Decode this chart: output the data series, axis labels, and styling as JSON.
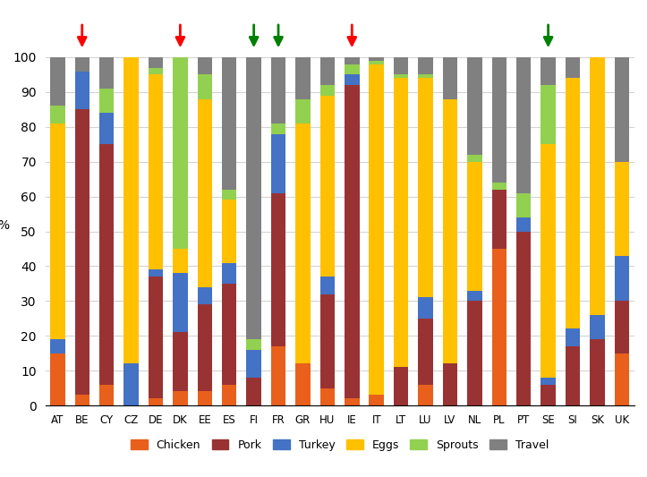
{
  "countries": [
    "AT",
    "BE",
    "CY",
    "CZ",
    "DE",
    "DK",
    "EE",
    "ES",
    "FI",
    "FR",
    "GR",
    "HU",
    "IE",
    "IT",
    "LT",
    "LU",
    "LV",
    "NL",
    "PL",
    "PT",
    "SE",
    "SI",
    "SK",
    "UK"
  ],
  "chicken": [
    15,
    3,
    6,
    0,
    2,
    4,
    4,
    6,
    0,
    17,
    12,
    5,
    2,
    3,
    0,
    6,
    0,
    0,
    45,
    0,
    0,
    0,
    0,
    15
  ],
  "pork": [
    0,
    82,
    69,
    0,
    35,
    17,
    25,
    29,
    8,
    44,
    0,
    27,
    90,
    0,
    11,
    19,
    12,
    30,
    17,
    50,
    6,
    17,
    19,
    15
  ],
  "turkey": [
    4,
    11,
    9,
    12,
    2,
    17,
    5,
    6,
    8,
    17,
    0,
    5,
    3,
    0,
    0,
    6,
    0,
    3,
    0,
    4,
    2,
    5,
    7,
    13
  ],
  "eggs": [
    62,
    0,
    0,
    88,
    56,
    7,
    54,
    18,
    0,
    0,
    69,
    52,
    0,
    95,
    83,
    63,
    76,
    37,
    0,
    0,
    67,
    72,
    74,
    27
  ],
  "sprouts": [
    5,
    0,
    7,
    0,
    2,
    55,
    7,
    3,
    3,
    3,
    7,
    3,
    3,
    1,
    1,
    1,
    0,
    2,
    2,
    7,
    17,
    0,
    0,
    0
  ],
  "travel": [
    14,
    4,
    9,
    0,
    3,
    0,
    5,
    38,
    81,
    19,
    12,
    8,
    2,
    1,
    5,
    5,
    12,
    28,
    36,
    39,
    8,
    6,
    0,
    30
  ],
  "colors": {
    "chicken": "#E8601C",
    "pork": "#993333",
    "turkey": "#4472C4",
    "eggs": "#FFC000",
    "sprouts": "#92D050",
    "travel": "#808080"
  },
  "arrow_countries": [
    "BE",
    "DK",
    "FI",
    "FR",
    "IE",
    "SE"
  ],
  "arrow_colors": [
    "red",
    "red",
    "green",
    "green",
    "red",
    "green"
  ],
  "ylabel": "%",
  "ylim": [
    0,
    100
  ],
  "yticks": [
    0,
    10,
    20,
    30,
    40,
    50,
    60,
    70,
    80,
    90,
    100
  ],
  "legend_labels": [
    "Chicken",
    "Pork",
    "Turkey",
    "Eggs",
    "Sprouts",
    "Travel"
  ]
}
